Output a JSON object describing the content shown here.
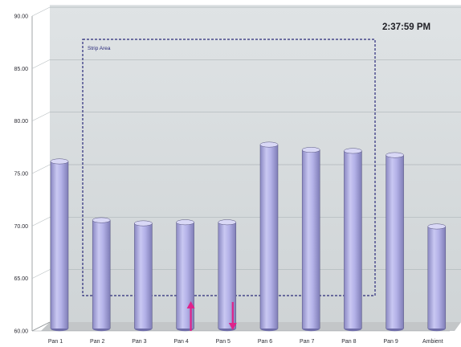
{
  "clock_time": "2:37:59 PM",
  "strip_area_label": "Strip Area",
  "colors": {
    "bar_fill": "#b4b2e8",
    "bar_top": "#d9d8f6",
    "bar_edge": "#55537e",
    "arrow": "#e0228a",
    "strip_border": "#2a2a7a",
    "wall": "#d4d9db",
    "floor": "#c3c6c8"
  },
  "annotations": [
    {
      "type": "arrow-up",
      "category": "Pan 4",
      "color": "#e0228a"
    },
    {
      "type": "arrow-down",
      "category": "Pan 5",
      "color": "#e0228a"
    }
  ],
  "chart_data": {
    "type": "bar",
    "style": "3d-cylinder",
    "title": "",
    "xlabel": "",
    "ylabel": "",
    "categories": [
      "Pan 1",
      "Pan 2",
      "Pan 3",
      "Pan 4",
      "Pan 5",
      "Pan 6",
      "Pan 7",
      "Pan 8",
      "Pan 9",
      "Ambient"
    ],
    "values": [
      76.0,
      70.4,
      70.1,
      70.2,
      70.2,
      77.6,
      77.1,
      77.0,
      76.6,
      69.8
    ],
    "ylim": [
      60,
      90
    ],
    "yticks": [
      "60.00",
      "65.00",
      "70.00",
      "75.00",
      "80.00",
      "85.00",
      "90.00"
    ],
    "grid": true,
    "legend": "none"
  }
}
